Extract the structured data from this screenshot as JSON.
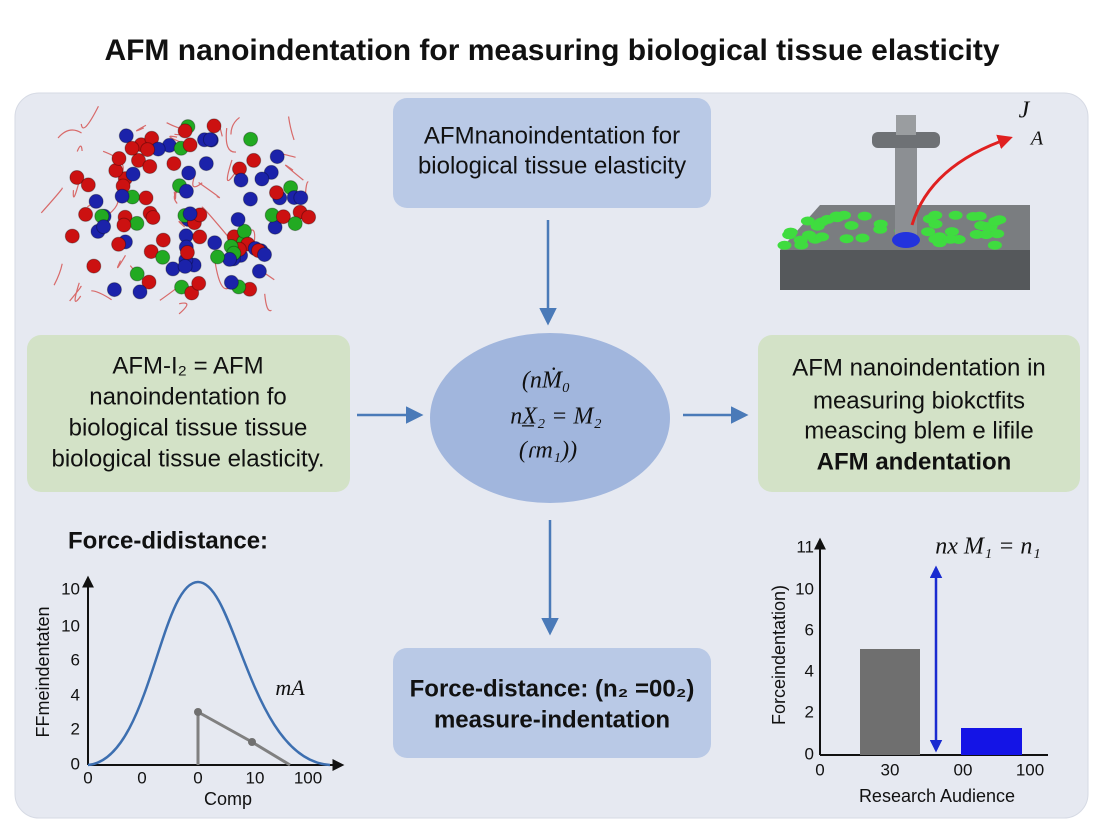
{
  "title": "AFM nanoindentation for measuring biological tissue elasticity",
  "top_box": {
    "lines": [
      "AFMnanoindentation for",
      "biological tissue elasticity"
    ]
  },
  "left_box": {
    "lines": [
      "AFM-I₂ = AFM",
      "nanoindentation fo",
      "biological tissue tissue",
      "biological tissue elasticity."
    ]
  },
  "center_node": {
    "lines": [
      "(nṀ₀",
      "nX̲₂ = M₂",
      "(ɾm₁))"
    ]
  },
  "right_box": {
    "lines": [
      "AFM nanoindentation in",
      "measuring biokctfits",
      "meascing blem e lifile",
      "AFM andentation"
    ]
  },
  "bottom_box": {
    "lines": [
      "Force-distance: (n₂ =00₂)",
      "measure-indentation"
    ]
  },
  "afm_labels": [
    "J",
    "A"
  ],
  "left_plot": {
    "title": "Force-didistance:",
    "y_label": "FFmeindentaten",
    "y_ticks": [
      "10",
      "10",
      "6",
      "4",
      "2",
      "0"
    ],
    "x_ticks": [
      "0",
      "0",
      "0",
      "10",
      "100"
    ],
    "x_label": "Comp",
    "annotation": "mA"
  },
  "right_plot": {
    "y_label": "Forceindentation)",
    "y_ticks": [
      "11",
      "10",
      "6",
      "4",
      "2",
      "0"
    ],
    "x_ticks": [
      "0",
      "30",
      "00",
      "100"
    ],
    "x_label": "Research Audience",
    "annotation": "nx M₁ = n₁"
  }
}
